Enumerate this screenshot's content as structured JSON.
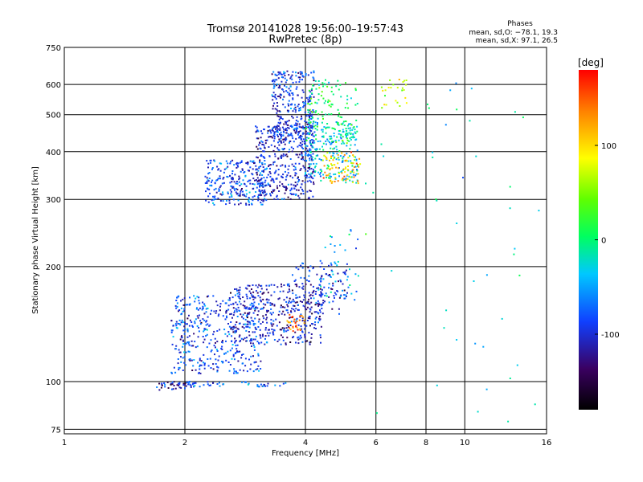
{
  "chart_data": {
    "type": "scatter",
    "title": "Tromsø 20141028 19:56:00–19:57:43",
    "subtitle": "RwPretec (8p)",
    "xlabel": "Frequency [MHz]",
    "ylabel": "Stationary phase Virtual Height [km]",
    "x_scale": "log",
    "y_scale": "log",
    "xlim": [
      1,
      16
    ],
    "ylim": [
      73,
      750
    ],
    "x_ticks": [
      1,
      2,
      4,
      6,
      8,
      10,
      16
    ],
    "x_tick_labels": [
      "1",
      "2",
      "4",
      "6",
      "8",
      "10",
      "16"
    ],
    "y_ticks": [
      75,
      100,
      200,
      300,
      400,
      500,
      600,
      750
    ],
    "y_tick_labels": [
      "75",
      "100",
      "200",
      "300",
      "400",
      "500",
      "600",
      "750"
    ],
    "grid": true,
    "stats": {
      "heading": "Phases",
      "line1": "mean, sd,O: −78.1, 19.3",
      "line2": "mean, sd,X:  97.1, 26.5"
    },
    "colorbar": {
      "label": "[deg]",
      "range": [
        -180,
        180
      ],
      "ticks": [
        100,
        0,
        -100
      ],
      "tick_labels": [
        "100",
        "0",
        "-100"
      ]
    },
    "clusters": [
      {
        "f": [
          1.7,
          2.1
        ],
        "h": [
          95,
          100
        ],
        "phase": -110,
        "count": 40
      },
      {
        "f": [
          2.0,
          3.6
        ],
        "h": [
          97,
          100
        ],
        "phase": -75,
        "count": 45
      },
      {
        "f": [
          1.85,
          3.1
        ],
        "h": [
          105,
          168
        ],
        "phase": -85,
        "count": 420
      },
      {
        "f": [
          2.6,
          4.4
        ],
        "h": [
          125,
          180
        ],
        "phase": -105,
        "count": 380
      },
      {
        "f": [
          3.7,
          5.1
        ],
        "h": [
          150,
          205
        ],
        "phase": -100,
        "count": 130
      },
      {
        "f": [
          3.6,
          4.0
        ],
        "h": [
          135,
          150
        ],
        "phase": 140,
        "count": 28
      },
      {
        "f": [
          4.3,
          5.5
        ],
        "h": [
          160,
          250
        ],
        "phase": -40,
        "count": 40
      },
      {
        "f": [
          2.25,
          3.2
        ],
        "h": [
          290,
          380
        ],
        "phase": -85,
        "count": 260
      },
      {
        "f": [
          3.0,
          4.2
        ],
        "h": [
          300,
          470
        ],
        "phase": -100,
        "count": 420
      },
      {
        "f": [
          3.3,
          4.2
        ],
        "h": [
          420,
          650
        ],
        "phase": -95,
        "count": 300
      },
      {
        "f": [
          4.0,
          5.4
        ],
        "h": [
          330,
          480
        ],
        "phase": -35,
        "count": 230
      },
      {
        "f": [
          4.4,
          5.5
        ],
        "h": [
          330,
          400
        ],
        "phase": 105,
        "count": 80
      },
      {
        "f": [
          4.0,
          5.4
        ],
        "h": [
          420,
          620
        ],
        "phase": 10,
        "count": 120
      },
      {
        "f": [
          6.2,
          7.2
        ],
        "h": [
          520,
          620
        ],
        "phase": 80,
        "count": 25
      },
      {
        "f": [
          5.5,
          16
        ],
        "h": [
          78,
          640
        ],
        "phase": -20,
        "count": 45
      }
    ]
  }
}
